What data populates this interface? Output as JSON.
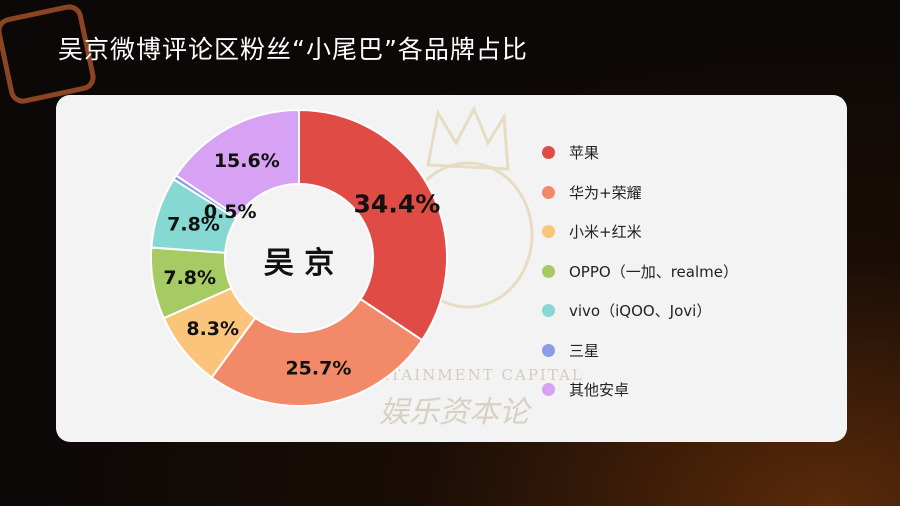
{
  "page": {
    "title": "吴京微博评论区粉丝“小尾巴”各品牌占比",
    "watermark": {
      "line1": "ENTERTAINMENT CAPITAL",
      "line2": "娱乐资本论"
    }
  },
  "chart_data": {
    "type": "pie",
    "variant": "donut",
    "center_label": "吴 京",
    "unit": "%",
    "legend_placement": "right",
    "categories": [
      "苹果",
      "华为+荣耀",
      "小米+红米",
      "OPPO（一加、realme）",
      "vivo（iQOO、Jovi）",
      "三星",
      "其他安卓"
    ],
    "values": [
      34.4,
      25.7,
      8.3,
      7.8,
      7.8,
      0.5,
      15.6
    ],
    "data_labels": [
      "34.4%",
      "25.7%",
      "8.3%",
      "7.8%",
      "7.8%",
      "0.5%",
      "15.6%"
    ],
    "colors": [
      "#e04b45",
      "#f28a6a",
      "#fac47a",
      "#a6ca64",
      "#86d8d2",
      "#8a9ce8",
      "#d7a2f4"
    ],
    "emphasized_label": "34.4%"
  }
}
